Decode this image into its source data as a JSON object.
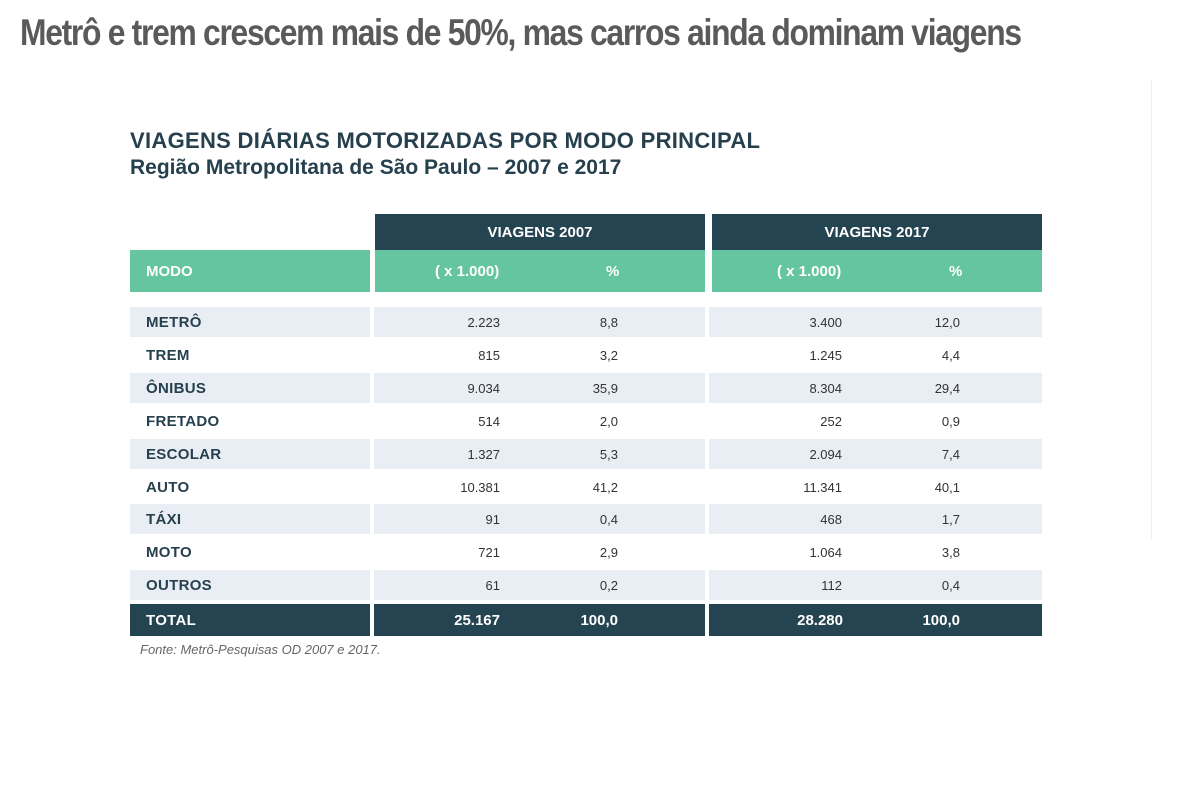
{
  "headline": "Metrô e trem crescem mais de 50%, mas carros ainda dominam viagens",
  "chart_data": {
    "type": "table",
    "title": "VIAGENS DIÁRIAS MOTORIZADAS POR MODO PRINCIPAL",
    "subtitle": "Região Metropolitana de São Paulo – 2007 e 2017",
    "group_headers": [
      "VIAGENS 2007",
      "VIAGENS 2017"
    ],
    "column_headers": {
      "mode": "MODO",
      "count": "( x 1.000)",
      "percent": "%"
    },
    "rows": [
      {
        "mode": "METRÔ",
        "v2007": "2.223",
        "p2007": "8,8",
        "v2017": "3.400",
        "p2017": "12,0"
      },
      {
        "mode": "TREM",
        "v2007": "815",
        "p2007": "3,2",
        "v2017": "1.245",
        "p2017": "4,4"
      },
      {
        "mode": "ÔNIBUS",
        "v2007": "9.034",
        "p2007": "35,9",
        "v2017": "8.304",
        "p2017": "29,4"
      },
      {
        "mode": "FRETADO",
        "v2007": "514",
        "p2007": "2,0",
        "v2017": "252",
        "p2017": "0,9"
      },
      {
        "mode": "ESCOLAR",
        "v2007": "1.327",
        "p2007": "5,3",
        "v2017": "2.094",
        "p2017": "7,4"
      },
      {
        "mode": "AUTO",
        "v2007": "10.381",
        "p2007": "41,2",
        "v2017": "11.341",
        "p2017": "40,1"
      },
      {
        "mode": "TÁXI",
        "v2007": "91",
        "p2007": "0,4",
        "v2017": "468",
        "p2017": "1,7"
      },
      {
        "mode": "MOTO",
        "v2007": "721",
        "p2007": "2,9",
        "v2017": "1.064",
        "p2017": "3,8"
      },
      {
        "mode": "OUTROS",
        "v2007": "61",
        "p2007": "0,2",
        "v2017": "112",
        "p2017": "0,4"
      }
    ],
    "total": {
      "mode": "TOTAL",
      "v2007": "25.167",
      "p2007": "100,0",
      "v2017": "28.280",
      "p2017": "100,0"
    },
    "source": "Fonte: Metrô-Pesquisas OD 2007 e 2017."
  },
  "colors": {
    "header_dark": "#254452",
    "header_green": "#66c5a1",
    "row_shade": "#e8eef3",
    "text_dark": "#26404e"
  }
}
